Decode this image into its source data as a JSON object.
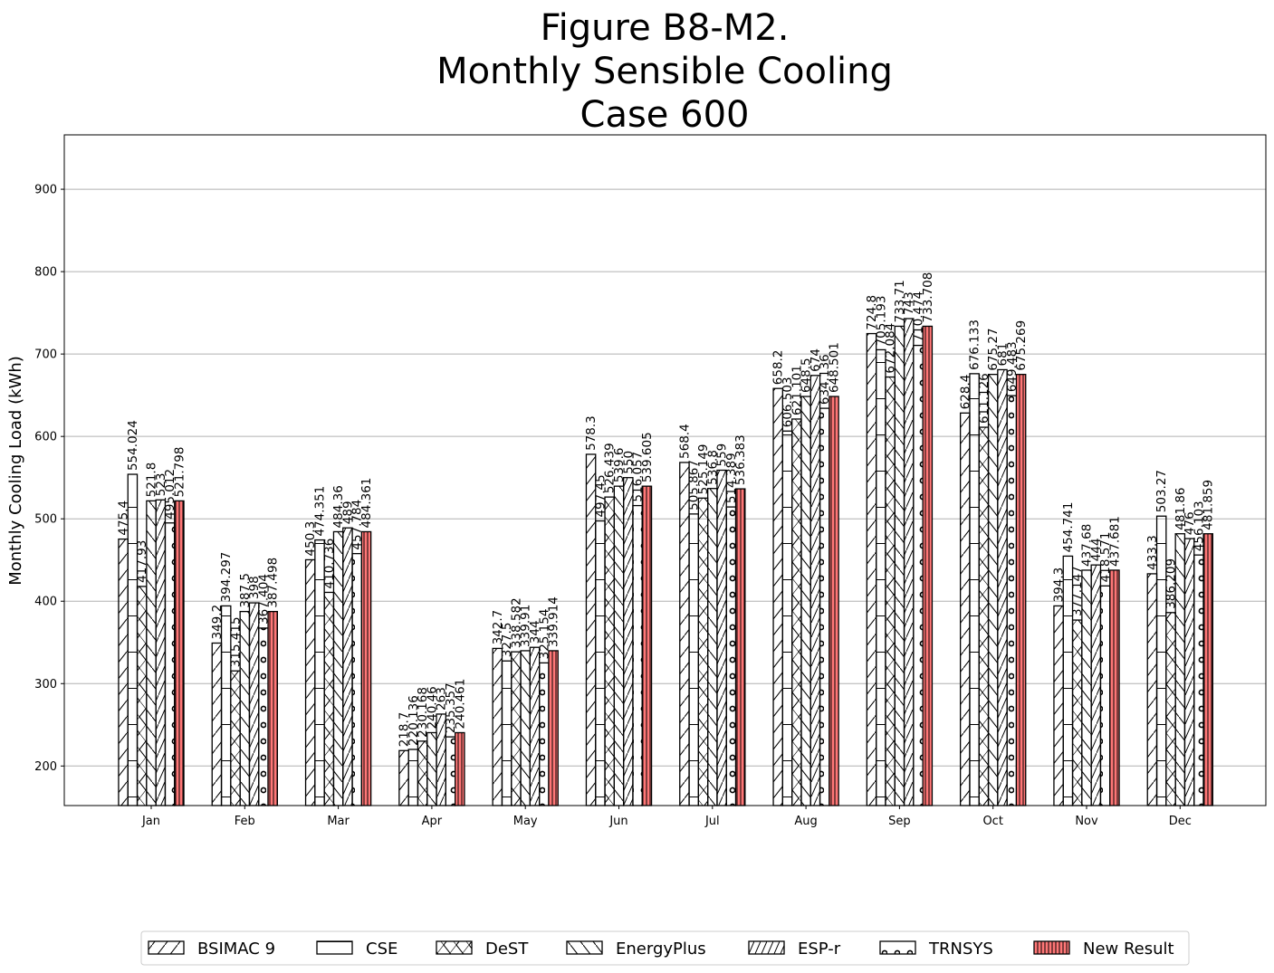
{
  "chart_data": {
    "type": "bar",
    "title": [
      "Figure B8-M2.",
      "Monthly Sensible Cooling",
      "Case 600"
    ],
    "ylabel": "Monthly Cooling Load (kWh)",
    "xlabel": "",
    "ylim": [
      152,
      966
    ],
    "yticks": [
      200,
      300,
      400,
      500,
      600,
      700,
      800,
      900
    ],
    "grid": "y",
    "legend_position": "bottom",
    "categories": [
      "Jan",
      "Feb",
      "Mar",
      "Apr",
      "May",
      "Jun",
      "Jul",
      "Aug",
      "Sep",
      "Oct",
      "Nov",
      "Dec"
    ],
    "series": [
      {
        "name": "BSIMAC 9",
        "pattern": "slash",
        "color": "#ffffff",
        "values": [
          475.4,
          349.2,
          450.3,
          218.7,
          342.7,
          578.3,
          568.4,
          658.2,
          724.8,
          628.4,
          394.3,
          433.3
        ],
        "labels": [
          "475.4",
          "349.2",
          "450.3",
          "218.7",
          "342.7",
          "578.3",
          "568.4",
          "658.2",
          "724.8",
          "628.4",
          "394.3",
          "433.3"
        ]
      },
      {
        "name": "CSE",
        "pattern": "hline",
        "color": "#ffffff",
        "values": [
          554.024,
          394.297,
          474.351,
          220.136,
          327.5,
          497.45,
          505.867,
          606.503,
          705.193,
          676.133,
          454.741,
          503.27
        ],
        "labels": [
          "554.024",
          "394.297",
          "474.351",
          "220.136",
          "327.5",
          "497.45",
          "505.867",
          "606.503",
          "705.193",
          "676.133",
          "454.741",
          "503.27"
        ]
      },
      {
        "name": "DeST",
        "pattern": "cross",
        "color": "#ffffff",
        "values": [
          417.93,
          315.415,
          410.736,
          230.168,
          338.582,
          526.439,
          525.149,
          621.101,
          672.084,
          611.126,
          377.147,
          386.209
        ],
        "labels": [
          "417.93",
          "315.415",
          "410.736",
          "230.168",
          "338.582",
          "526.439",
          "525.149",
          "621.101",
          "672.084",
          "611.126",
          "377.147",
          "386.209"
        ]
      },
      {
        "name": "EnergyPlus",
        "pattern": "backslash",
        "color": "#ffffff",
        "values": [
          521.8,
          387.5,
          484.36,
          240.46,
          339.91,
          539.6,
          536.8,
          648.5,
          733.71,
          675.27,
          437.68,
          481.86
        ],
        "labels": [
          "521.8",
          "387.5",
          "484.36",
          "240.46",
          "339.91",
          "539.6",
          "536.8",
          "648.5",
          "733.71",
          "675.27",
          "437.68",
          "481.86"
        ]
      },
      {
        "name": "ESP-r",
        "pattern": "dslash",
        "color": "#ffffff",
        "values": [
          523,
          398,
          489,
          263,
          344,
          550,
          559,
          674,
          743,
          681,
          444,
          476
        ],
        "labels": [
          "523",
          "398",
          "489",
          "263",
          "344",
          "550",
          "559",
          "674",
          "743",
          "681",
          "444",
          "476"
        ]
      },
      {
        "name": "TRNSYS",
        "pattern": "circles",
        "color": "#ffffff",
        "values": [
          495.012,
          367.404,
          457.784,
          235.357,
          325.154,
          516.057,
          514.389,
          634.136,
          710.474,
          649.483,
          418.571,
          456.103
        ],
        "labels": [
          "495.012",
          "367.404",
          "457.784",
          "235.357",
          "325.154",
          "516.057",
          "514.389",
          "634.136",
          "710.474",
          "649.483",
          "418.571",
          "456.103"
        ]
      },
      {
        "name": "New Result",
        "pattern": "vline",
        "color": "#ff7777",
        "values": [
          521.798,
          387.498,
          484.361,
          240.461,
          339.914,
          539.605,
          536.383,
          648.501,
          733.708,
          675.269,
          437.681,
          481.859
        ],
        "labels": [
          "521.798",
          "387.498",
          "484.361",
          "240.461",
          "339.914",
          "539.605",
          "536.383",
          "648.501",
          "733.708",
          "675.269",
          "437.681",
          "481.859"
        ]
      }
    ]
  }
}
